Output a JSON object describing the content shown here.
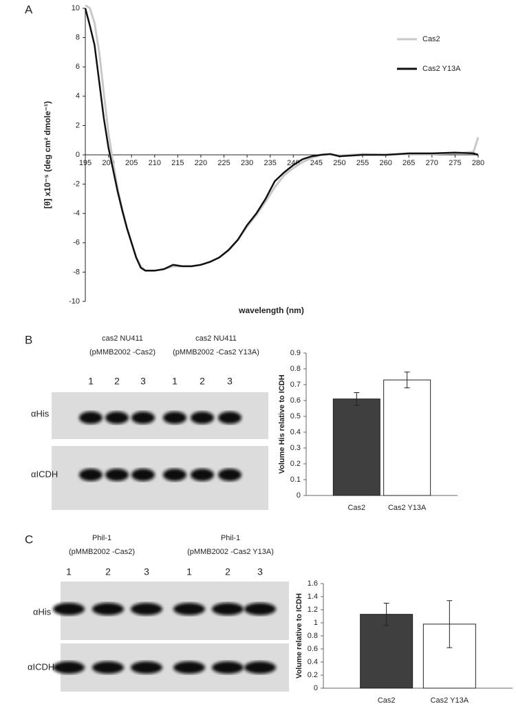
{
  "panel_labels": [
    "A",
    "B",
    "C"
  ],
  "chart_data": [
    {
      "type": "line",
      "x": [
        195,
        196,
        197,
        198,
        199,
        200,
        201,
        202,
        203,
        204,
        205,
        206,
        207,
        208,
        210,
        212,
        214,
        216,
        218,
        220,
        222,
        224,
        226,
        228,
        230,
        232,
        234,
        236,
        238,
        240,
        242,
        244,
        246,
        248,
        250,
        255,
        260,
        265,
        270,
        275,
        279,
        280
      ],
      "series": [
        {
          "name": "Cas2",
          "color": "#c8c8c8",
          "values": [
            10.2,
            10,
            9,
            7,
            4.2,
            1.5,
            -0.5,
            -2.3,
            -3.7,
            -5,
            -6,
            -7,
            -7.6,
            -7.9,
            -7.9,
            -7.8,
            -7.6,
            -7.6,
            -7.6,
            -7.5,
            -7.3,
            -7,
            -6.5,
            -5.8,
            -4.9,
            -4.1,
            -3.2,
            -2.2,
            -1.4,
            -0.9,
            -0.5,
            -0.2,
            0,
            0.05,
            -0.05,
            0.05,
            0,
            0.05,
            0.05,
            0.1,
            0.2,
            1.2
          ]
        },
        {
          "name": "Cas2 Y13A",
          "color": "#111111",
          "values": [
            10,
            8.8,
            7.5,
            5,
            2.5,
            0.5,
            -1,
            -2.5,
            -3.8,
            -5,
            -6,
            -7,
            -7.7,
            -7.9,
            -7.9,
            -7.8,
            -7.5,
            -7.6,
            -7.6,
            -7.5,
            -7.3,
            -7,
            -6.5,
            -5.8,
            -4.8,
            -4,
            -3,
            -1.8,
            -1.2,
            -0.7,
            -0.3,
            -0.1,
            0,
            0.05,
            -0.1,
            0,
            0,
            0.1,
            0.1,
            0.15,
            0.1,
            0
          ]
        }
      ],
      "xlabel": "wavelength (nm)",
      "ylabel": "[θ] x10⁻⁵ (deg cm² dmole⁻¹)",
      "xlim": [
        195,
        280
      ],
      "xticks": [
        195,
        200,
        205,
        210,
        215,
        220,
        225,
        230,
        235,
        240,
        245,
        250,
        255,
        260,
        265,
        270,
        275,
        280
      ],
      "ylim": [
        -10,
        10
      ],
      "yticks": [
        -10,
        -8,
        -6,
        -4,
        -2,
        0,
        2,
        4,
        6,
        8,
        10
      ],
      "legend": "top-right"
    },
    {
      "type": "bar",
      "categories": [
        "Cas2",
        "Cas2 Y13A"
      ],
      "values": [
        0.61,
        0.73
      ],
      "errors": [
        0.04,
        0.05
      ],
      "colors": [
        "#3f3f3f",
        "#ffffff"
      ],
      "ylabel": "Volume His relative to ICDH",
      "ylim": [
        0,
        0.9
      ],
      "yticks": [
        0,
        0.1,
        0.2,
        0.3,
        0.4,
        0.5,
        0.6,
        0.7,
        0.8,
        0.9
      ]
    },
    {
      "type": "bar",
      "categories": [
        "Cas2",
        "Cas2 Y13A"
      ],
      "values": [
        1.13,
        0.98
      ],
      "errors": [
        0.17,
        0.36
      ],
      "colors": [
        "#3f3f3f",
        "#ffffff"
      ],
      "ylabel": "Volume relative to ICDH",
      "ylim": [
        0,
        1.6
      ],
      "yticks": [
        0,
        0.2,
        0.4,
        0.6,
        0.8,
        1,
        1.2,
        1.4,
        1.6
      ]
    }
  ],
  "blots": [
    {
      "groups": [
        [
          "cas2 NU411",
          "(pMMB2002 -Cas2)"
        ],
        [
          "cas2 NU411",
          "(pMMB2002 -Cas2 Y13A)"
        ]
      ],
      "lanes": [
        "1",
        "2",
        "3",
        "1",
        "2",
        "3"
      ],
      "rows": [
        "αHis",
        "αICDH"
      ]
    },
    {
      "groups": [
        [
          "Phil-1",
          "(pMMB2002 -Cas2)"
        ],
        [
          "Phil-1",
          "(pMMB2002 -Cas2 Y13A)"
        ]
      ],
      "lanes": [
        "1",
        "2",
        "3",
        "1",
        "2",
        "3"
      ],
      "rows": [
        "αHis",
        "αICDH"
      ]
    }
  ]
}
